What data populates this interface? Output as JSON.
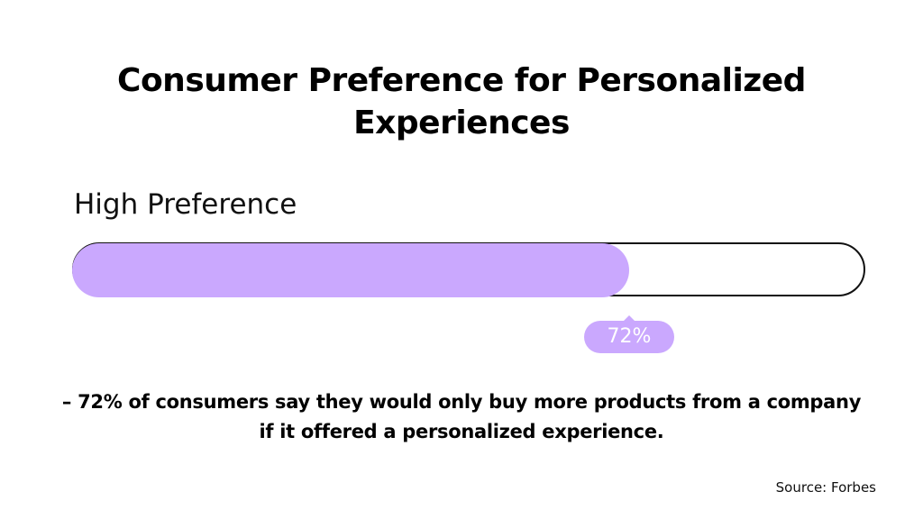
{
  "colors": {
    "fill": "#caa8fe",
    "badge": "#caa8fe",
    "track_border": "#111111"
  },
  "chart_data": {
    "type": "bar",
    "title_line1": "Consumer Preference for Personalized",
    "title_line2": "Experiences",
    "categories": [
      "High Preference"
    ],
    "values": [
      72
    ],
    "value_labels": [
      "72%"
    ],
    "ylim": [
      0,
      100
    ],
    "xlabel": "",
    "ylabel": ""
  },
  "summary": {
    "line1": "– 72% of consumers say they would only buy more products from a company",
    "line2": "if it offered a personalized experience."
  },
  "source": "Source: Forbes"
}
